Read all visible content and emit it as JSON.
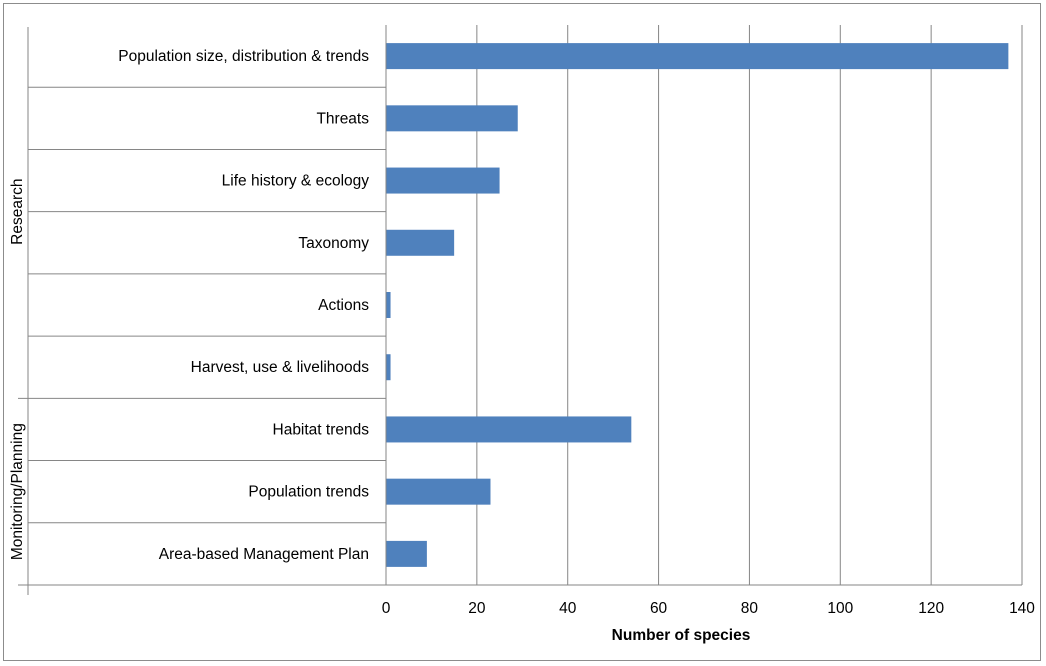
{
  "chart_data": {
    "type": "bar",
    "orientation": "horizontal",
    "title": "",
    "xlabel": "Number of species",
    "ylabel": "",
    "xlim": [
      0,
      140
    ],
    "xticks": [
      0,
      20,
      40,
      60,
      80,
      100,
      120,
      140
    ],
    "grid": "vertical",
    "bar_color": "#4f81bd",
    "categories": [
      "Population size, distribution & trends",
      "Threats",
      "Life history & ecology",
      "Taxonomy",
      "Actions",
      "Harvest, use & livelihoods",
      "Habitat trends",
      "Population trends",
      "Area-based Management Plan"
    ],
    "values": [
      137,
      29,
      25,
      15,
      1,
      1,
      54,
      23,
      9
    ],
    "groups": [
      {
        "name": "Research",
        "categories": 6
      },
      {
        "name": "Monitoring/Planning",
        "categories": 3
      }
    ]
  }
}
